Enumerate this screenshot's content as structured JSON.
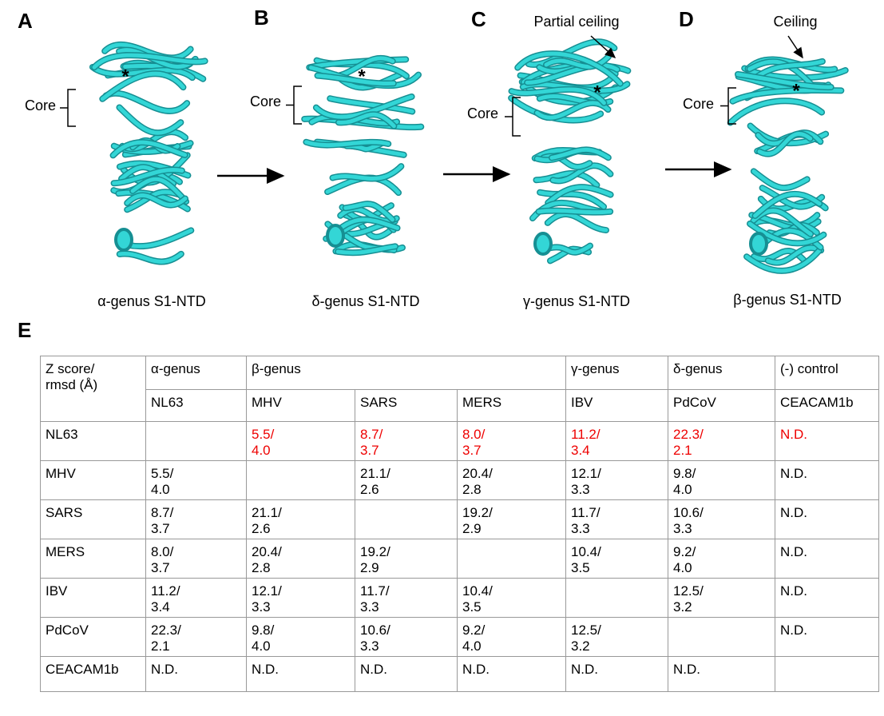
{
  "panels": [
    {
      "letter": "A",
      "core": "Core",
      "star": "*",
      "caption": "α-genus S1-NTD",
      "annotation": null
    },
    {
      "letter": "B",
      "core": "Core",
      "star": "*",
      "caption": "δ-genus S1-NTD",
      "annotation": null
    },
    {
      "letter": "C",
      "core": "Core",
      "star": "*",
      "caption": "γ-genus S1-NTD",
      "annotation": "Partial ceiling"
    },
    {
      "letter": "D",
      "core": "Core",
      "star": "*",
      "caption": "β-genus S1-NTD",
      "annotation": "Ceiling"
    }
  ],
  "table": {
    "letter": "E",
    "corner": [
      "Z score/",
      "rmsd (Å)"
    ],
    "groups": [
      {
        "name": "α-genus",
        "span": 1
      },
      {
        "name": "β-genus",
        "span": 3
      },
      {
        "name": "γ-genus",
        "span": 1
      },
      {
        "name": "δ-genus",
        "span": 1
      },
      {
        "name": "(-) control",
        "span": 1
      }
    ],
    "columns": [
      "NL63",
      "MHV",
      "SARS",
      "MERS",
      "IBV",
      "PdCoV",
      "CEACAM1b"
    ],
    "rows": [
      {
        "name": "NL63",
        "cells": [
          null,
          [
            "5.5/",
            "4.0"
          ],
          [
            "8.7/",
            "3.7"
          ],
          [
            "8.0/",
            "3.7"
          ],
          [
            "11.2/",
            "3.4"
          ],
          [
            "22.3/",
            "2.1"
          ],
          [
            "N.D."
          ]
        ]
      },
      {
        "name": "MHV",
        "cells": [
          [
            "5.5/",
            "4.0"
          ],
          null,
          [
            "21.1/",
            "2.6"
          ],
          [
            "20.4/",
            "2.8"
          ],
          [
            "12.1/",
            "3.3"
          ],
          [
            "9.8/",
            "4.0"
          ],
          [
            "N.D."
          ]
        ]
      },
      {
        "name": "SARS",
        "cells": [
          [
            "8.7/",
            "3.7"
          ],
          [
            "21.1/",
            "2.6"
          ],
          null,
          [
            "19.2/",
            "2.9"
          ],
          [
            "11.7/",
            "3.3"
          ],
          [
            "10.6/",
            "3.3"
          ],
          [
            "N.D."
          ]
        ]
      },
      {
        "name": "MERS",
        "cells": [
          [
            "8.0/",
            "3.7"
          ],
          [
            "20.4/",
            "2.8"
          ],
          [
            "19.2/",
            "2.9"
          ],
          null,
          [
            "10.4/",
            "3.5"
          ],
          [
            "9.2/",
            "4.0"
          ],
          [
            "N.D."
          ]
        ]
      },
      {
        "name": "IBV",
        "cells": [
          [
            "11.2/",
            "3.4"
          ],
          [
            "12.1/",
            "3.3"
          ],
          [
            "11.7/",
            "3.3"
          ],
          [
            "10.4/",
            "3.5"
          ],
          null,
          [
            "12.5/",
            "3.2"
          ],
          [
            "N.D."
          ]
        ]
      },
      {
        "name": "PdCoV",
        "cells": [
          [
            "22.3/",
            "2.1"
          ],
          [
            "9.8/",
            "4.0"
          ],
          [
            "10.6/",
            "3.3"
          ],
          [
            "9.2/",
            "4.0"
          ],
          [
            "12.5/",
            "3.2"
          ],
          null,
          [
            "N.D."
          ]
        ]
      },
      {
        "name": "CEACAM1b",
        "cells": [
          [
            "N.D."
          ],
          [
            "N.D."
          ],
          [
            "N.D."
          ],
          [
            "N.D."
          ],
          [
            "N.D."
          ],
          [
            "N.D."
          ],
          null
        ]
      }
    ]
  }
}
